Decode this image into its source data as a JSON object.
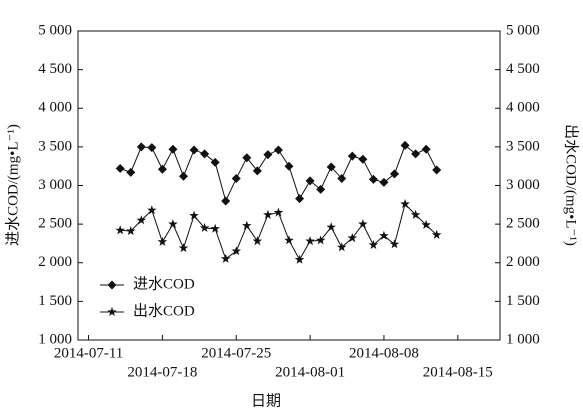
{
  "chart_data": {
    "type": "line",
    "x": [
      "2014-07-14",
      "2014-07-15",
      "2014-07-16",
      "2014-07-17",
      "2014-07-18",
      "2014-07-19",
      "2014-07-20",
      "2014-07-21",
      "2014-07-22",
      "2014-07-23",
      "2014-07-24",
      "2014-07-25",
      "2014-07-26",
      "2014-07-27",
      "2014-07-28",
      "2014-07-29",
      "2014-07-30",
      "2014-07-31",
      "2014-08-01",
      "2014-08-02",
      "2014-08-03",
      "2014-08-04",
      "2014-08-05",
      "2014-08-06",
      "2014-08-07",
      "2014-08-08",
      "2014-08-09",
      "2014-08-10",
      "2014-08-11",
      "2014-08-12",
      "2014-08-13"
    ],
    "series": [
      {
        "name": "进水COD",
        "color": "#111111",
        "marker": "diamond",
        "values": [
          3220,
          3170,
          3500,
          3490,
          3210,
          3470,
          3120,
          3460,
          3410,
          3300,
          2800,
          3090,
          3360,
          3190,
          3400,
          3460,
          3250,
          2830,
          3060,
          2950,
          3240,
          3090,
          3380,
          3340,
          3080,
          3040,
          3150,
          3520,
          3410,
          3470,
          3200
        ]
      },
      {
        "name": "出水COD",
        "color": "#111111",
        "marker": "star",
        "values": [
          2420,
          2410,
          2550,
          2680,
          2270,
          2500,
          2190,
          2610,
          2450,
          2440,
          2050,
          2150,
          2480,
          2280,
          2620,
          2650,
          2290,
          2040,
          2280,
          2290,
          2460,
          2200,
          2320,
          2500,
          2230,
          2350,
          2240,
          2760,
          2620,
          2490,
          2360
        ]
      }
    ],
    "xlim": [
      "2014-07-10",
      "2014-08-19"
    ],
    "xticks": [
      "2014-07-11",
      "2014-07-18",
      "2014-07-25",
      "2014-08-01",
      "2014-08-08",
      "2014-08-15"
    ],
    "ylim": [
      1000,
      5000
    ],
    "yticks": [
      {
        "value": 1000,
        "label": "1 000"
      },
      {
        "value": 1500,
        "label": "1 500"
      },
      {
        "value": 2000,
        "label": "2 000"
      },
      {
        "value": 2500,
        "label": "2 500"
      },
      {
        "value": 3000,
        "label": "3 000"
      },
      {
        "value": 3500,
        "label": "3 500"
      },
      {
        "value": 4000,
        "label": "4 000"
      },
      {
        "value": 4500,
        "label": "4 500"
      },
      {
        "value": 5000,
        "label": "5 000"
      }
    ],
    "y2lim": [
      1000,
      5000
    ],
    "y2ticks": [
      {
        "value": 1000,
        "label": "1 000"
      },
      {
        "value": 1500,
        "label": "1 500"
      },
      {
        "value": 2000,
        "label": "2 000"
      },
      {
        "value": 2500,
        "label": "2 500"
      },
      {
        "value": 3000,
        "label": "3 000"
      },
      {
        "value": 3500,
        "label": "3 500"
      },
      {
        "value": 4000,
        "label": "4 000"
      },
      {
        "value": 4500,
        "label": "4 500"
      },
      {
        "value": 5000,
        "label": "5 000"
      }
    ],
    "xlabel": "日期",
    "ylabel": "进水COD/(mg•L⁻¹)",
    "y2label": "出水COD/(mg•L⁻¹)",
    "legend": "lower left"
  }
}
